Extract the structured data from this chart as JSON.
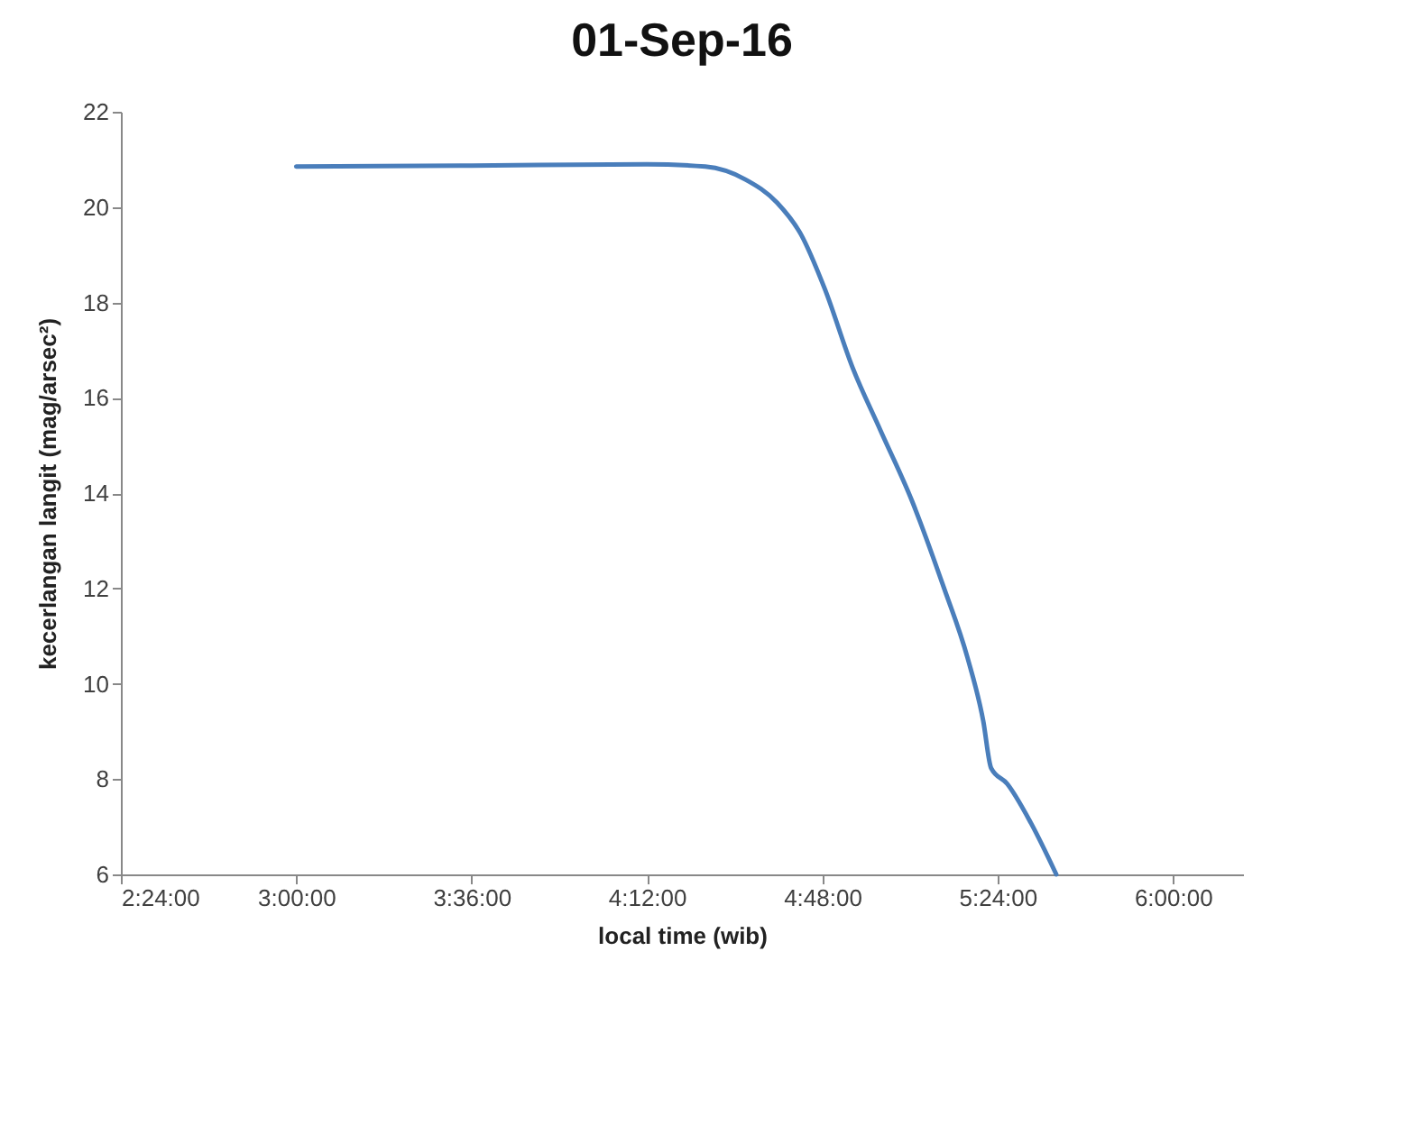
{
  "chart_data": {
    "type": "line",
    "title": "01-Sep-16",
    "xlabel": "local time (wib)",
    "ylabel": "kecerlangan langit (mag/arsec²)",
    "x": [
      3.0,
      3.6,
      4.2,
      4.4,
      4.537,
      4.646,
      4.727,
      4.809,
      4.904,
      4.999,
      5.107,
      5.216,
      5.297,
      5.351,
      5.378,
      5.433,
      5.514,
      5.601
    ],
    "series": [
      {
        "color": "#4a7ebb",
        "values": [
          20.85,
          20.87,
          20.9,
          20.85,
          20.58,
          20.09,
          19.43,
          18.28,
          16.63,
          15.32,
          13.84,
          12.02,
          10.55,
          9.22,
          8.23,
          7.9,
          7.08,
          6.0
        ]
      }
    ],
    "xlim": [
      2.4,
      6.24
    ],
    "xticks": [
      {
        "value": 2.4,
        "label": "2:24:00"
      },
      {
        "value": 3.0,
        "label": "3:00:00"
      },
      {
        "value": 3.6,
        "label": "3:36:00"
      },
      {
        "value": 4.2,
        "label": "4:12:00"
      },
      {
        "value": 4.8,
        "label": "4:48:00"
      },
      {
        "value": 5.4,
        "label": "5:24:00"
      },
      {
        "value": 6.0,
        "label": "6:00:00"
      }
    ],
    "ylim": [
      6,
      22
    ],
    "yticks": [
      6,
      8,
      10,
      12,
      14,
      16,
      18,
      20,
      22
    ],
    "grid": false,
    "marker": "none",
    "line_style": "solid"
  }
}
